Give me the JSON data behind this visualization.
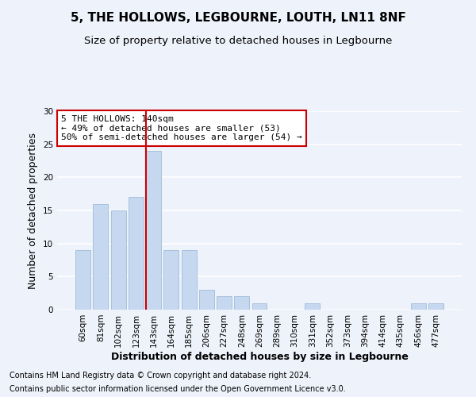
{
  "title": "5, THE HOLLOWS, LEGBOURNE, LOUTH, LN11 8NF",
  "subtitle": "Size of property relative to detached houses in Legbourne",
  "xlabel": "Distribution of detached houses by size in Legbourne",
  "ylabel": "Number of detached properties",
  "categories": [
    "60sqm",
    "81sqm",
    "102sqm",
    "123sqm",
    "143sqm",
    "164sqm",
    "185sqm",
    "206sqm",
    "227sqm",
    "248sqm",
    "269sqm",
    "289sqm",
    "310sqm",
    "331sqm",
    "352sqm",
    "373sqm",
    "394sqm",
    "414sqm",
    "435sqm",
    "456sqm",
    "477sqm"
  ],
  "values": [
    9,
    16,
    15,
    17,
    24,
    9,
    9,
    3,
    2,
    2,
    1,
    0,
    0,
    1,
    0,
    0,
    0,
    0,
    0,
    1,
    1
  ],
  "bar_color": "#c5d8f0",
  "bar_edgecolor": "#a0bcd8",
  "highlight_index": 4,
  "red_line_color": "#cc0000",
  "annotation_text": "5 THE HOLLOWS: 140sqm\n← 49% of detached houses are smaller (53)\n50% of semi-detached houses are larger (54) →",
  "annotation_box_color": "#ffffff",
  "annotation_box_edgecolor": "#cc0000",
  "ylim": [
    0,
    30
  ],
  "yticks": [
    0,
    5,
    10,
    15,
    20,
    25,
    30
  ],
  "footnote1": "Contains HM Land Registry data © Crown copyright and database right 2024.",
  "footnote2": "Contains public sector information licensed under the Open Government Licence v3.0.",
  "background_color": "#eef2fb",
  "grid_color": "#ffffff",
  "title_fontsize": 11,
  "subtitle_fontsize": 9.5,
  "xlabel_fontsize": 9,
  "ylabel_fontsize": 9,
  "tick_fontsize": 7.5,
  "annotation_fontsize": 8,
  "footnote_fontsize": 7
}
